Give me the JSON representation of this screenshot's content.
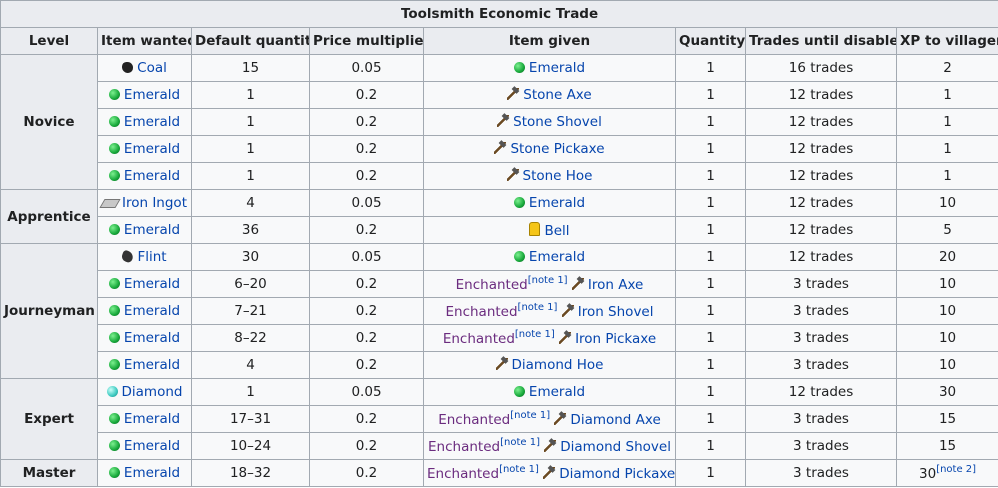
{
  "table": {
    "title": "Toolsmith Economic Trade",
    "headers": [
      "Level",
      "Item wanted",
      "Default quantity",
      "Price multiplier",
      "Item given",
      "Quantity",
      "Trades until disabled",
      "XP to villager"
    ],
    "levels": [
      {
        "name": "Novice",
        "rows": [
          {
            "wanted": "Coal",
            "default_quantity": 15,
            "price_multiplier": 0.05,
            "given": "Emerald",
            "quantity": 1,
            "trades": "16 trades",
            "xp": 2
          },
          {
            "wanted": "Emerald",
            "default_quantity": 1,
            "price_multiplier": 0.2,
            "given": "Stone Axe",
            "quantity": 1,
            "trades": "12 trades",
            "xp": 1
          },
          {
            "wanted": "Emerald",
            "default_quantity": 1,
            "price_multiplier": 0.2,
            "given": "Stone Shovel",
            "quantity": 1,
            "trades": "12 trades",
            "xp": 1
          },
          {
            "wanted": "Emerald",
            "default_quantity": 1,
            "price_multiplier": 0.2,
            "given": "Stone Pickaxe",
            "quantity": 1,
            "trades": "12 trades",
            "xp": 1
          },
          {
            "wanted": "Emerald",
            "default_quantity": 1,
            "price_multiplier": 0.2,
            "given": "Stone Hoe",
            "quantity": 1,
            "trades": "12 trades",
            "xp": 1
          }
        ]
      },
      {
        "name": "Apprentice",
        "rows": [
          {
            "wanted": "Iron Ingot",
            "default_quantity": 4,
            "price_multiplier": 0.05,
            "given": "Emerald",
            "quantity": 1,
            "trades": "12 trades",
            "xp": 10
          },
          {
            "wanted": "Emerald",
            "default_quantity": 36,
            "price_multiplier": 0.2,
            "given": "Bell",
            "quantity": 1,
            "trades": "12 trades",
            "xp": 5
          }
        ]
      },
      {
        "name": "Journeyman",
        "rows": [
          {
            "wanted": "Flint",
            "default_quantity": 30,
            "price_multiplier": 0.05,
            "given": "Emerald",
            "quantity": 1,
            "trades": "12 trades",
            "xp": 20
          },
          {
            "wanted": "Emerald",
            "default_quantity": "6–20",
            "price_multiplier": 0.2,
            "enchanted": "Enchanted",
            "enchanted_note": "[note 1]",
            "given": "Iron Axe",
            "quantity": 1,
            "trades": "3 trades",
            "xp": 10
          },
          {
            "wanted": "Emerald",
            "default_quantity": "7–21",
            "price_multiplier": 0.2,
            "enchanted": "Enchanted",
            "enchanted_note": "[note 1]",
            "given": "Iron Shovel",
            "quantity": 1,
            "trades": "3 trades",
            "xp": 10
          },
          {
            "wanted": "Emerald",
            "default_quantity": "8–22",
            "price_multiplier": 0.2,
            "enchanted": "Enchanted",
            "enchanted_note": "[note 1]",
            "given": "Iron Pickaxe",
            "quantity": 1,
            "trades": "3 trades",
            "xp": 10
          },
          {
            "wanted": "Emerald",
            "default_quantity": 4,
            "price_multiplier": 0.2,
            "given": "Diamond Hoe",
            "quantity": 1,
            "trades": "3 trades",
            "xp": 10
          }
        ]
      },
      {
        "name": "Expert",
        "rows": [
          {
            "wanted": "Diamond",
            "default_quantity": 1,
            "price_multiplier": 0.05,
            "given": "Emerald",
            "quantity": 1,
            "trades": "12 trades",
            "xp": 30
          },
          {
            "wanted": "Emerald",
            "default_quantity": "17–31",
            "price_multiplier": 0.2,
            "enchanted": "Enchanted",
            "enchanted_note": "[note 1]",
            "given": "Diamond Axe",
            "quantity": 1,
            "trades": "3 trades",
            "xp": 15
          },
          {
            "wanted": "Emerald",
            "default_quantity": "10–24",
            "price_multiplier": 0.2,
            "enchanted": "Enchanted",
            "enchanted_note": "[note 1]",
            "given": "Diamond Shovel",
            "quantity": 1,
            "trades": "3 trades",
            "xp": 15
          }
        ]
      },
      {
        "name": "Master",
        "rows": [
          {
            "wanted": "Emerald",
            "default_quantity": "18–32",
            "price_multiplier": 0.2,
            "enchanted": "Enchanted",
            "enchanted_note": "[note 1]",
            "given": "Diamond Pickaxe",
            "quantity": 1,
            "trades": "3 trades",
            "xp": 30,
            "xp_note": "[note 2]"
          }
        ]
      }
    ]
  }
}
